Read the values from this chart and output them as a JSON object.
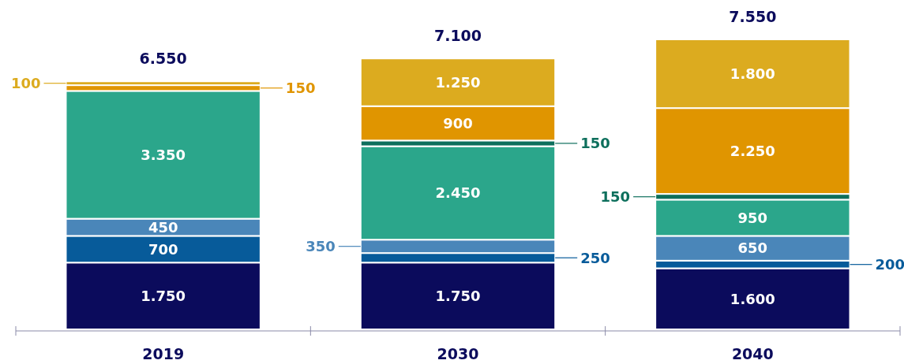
{
  "chart_data": {
    "type": "bar",
    "stacked": true,
    "categories": [
      "2019",
      "2030",
      "2040"
    ],
    "series": [
      {
        "color": "#0b0b5c",
        "values": [
          1750,
          1750,
          1600
        ],
        "value_labels": [
          "1.750",
          "1.750",
          "1.600"
        ]
      },
      {
        "color": "#075b9a",
        "values": [
          700,
          250,
          200
        ],
        "value_labels": [
          "700",
          "250",
          "200"
        ]
      },
      {
        "color": "#4a86b9",
        "values": [
          450,
          350,
          650
        ],
        "value_labels": [
          "450",
          "350",
          "650"
        ]
      },
      {
        "color": "#2ba68b",
        "values": [
          3350,
          2450,
          950
        ],
        "value_labels": [
          "3.350",
          "2.450",
          "950"
        ]
      },
      {
        "color": "#0d6f5c",
        "values": [
          null,
          150,
          150
        ],
        "value_labels": [
          null,
          "150",
          "150"
        ]
      },
      {
        "color": "#e09500",
        "values": [
          150,
          900,
          2250
        ],
        "value_labels": [
          "150",
          "900",
          "2.250"
        ]
      },
      {
        "color": "#dcab1f",
        "values": [
          100,
          1250,
          1800
        ],
        "value_labels": [
          "100",
          "1.250",
          "1.800"
        ]
      }
    ],
    "annotations": [
      "6.550",
      "7.100",
      "7.550"
    ]
  }
}
